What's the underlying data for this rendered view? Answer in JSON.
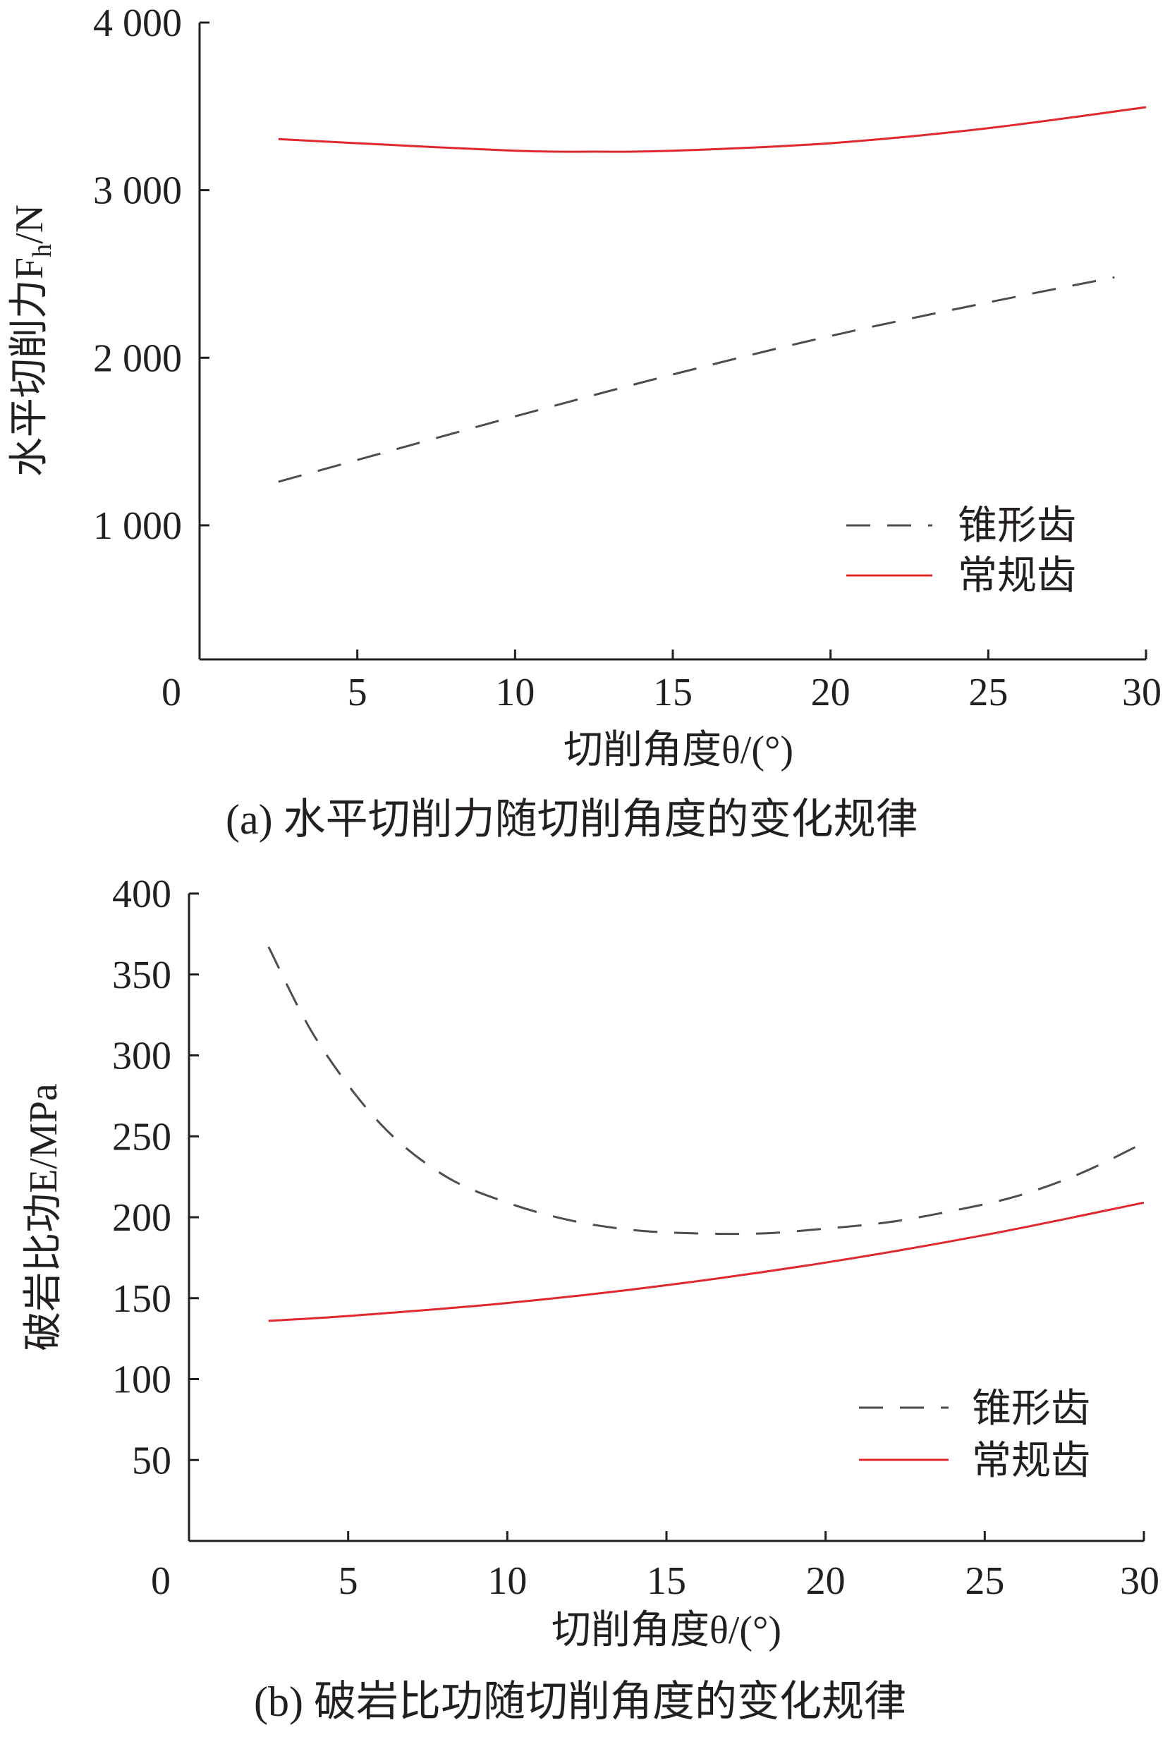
{
  "chart_data": [
    {
      "type": "line",
      "caption": "(a)  水平切削力随切削角度的变化规律",
      "xlabel": "切削角度θ/(°)",
      "ylabel": "水平切削力F",
      "ylabel_sub": "h",
      "ylabel_unit": "/N",
      "xlim": [
        0,
        30
      ],
      "ylim": [
        200,
        4000
      ],
      "xticks": [
        0,
        5,
        10,
        15,
        20,
        25,
        30
      ],
      "xtick_labels": [
        "0",
        "5",
        "10",
        "15",
        "20",
        "25",
        "30"
      ],
      "yticks": [
        1000,
        2000,
        3000,
        4000
      ],
      "ytick_labels": [
        "1 000",
        "2 000",
        "3 000",
        "4 000"
      ],
      "legend_position": "bottom-right",
      "series": [
        {
          "name": "锥形齿",
          "style": "dashed",
          "color": "#4d4d4d",
          "x": [
            2.5,
            5,
            10,
            15,
            20,
            25,
            29
          ],
          "y": [
            1260,
            1390,
            1650,
            1900,
            2130,
            2330,
            2480
          ]
        },
        {
          "name": "常规齿",
          "style": "solid",
          "color": "#e0282e",
          "x": [
            2.5,
            5,
            10,
            12.5,
            15,
            20,
            25,
            30
          ],
          "y": [
            3305,
            3280,
            3235,
            3230,
            3235,
            3280,
            3370,
            3495
          ]
        }
      ]
    },
    {
      "type": "line",
      "caption": "(b)  破岩比功随切削角度的变化规律",
      "xlabel": "切削角度θ/(°)",
      "ylabel": "破岩比功E/MPa",
      "xlim": [
        0,
        30
      ],
      "ylim": [
        0,
        400
      ],
      "xticks": [
        0,
        5,
        10,
        15,
        20,
        25,
        30
      ],
      "xtick_labels": [
        "0",
        "5",
        "10",
        "15",
        "20",
        "25",
        "30"
      ],
      "yticks": [
        50,
        100,
        150,
        200,
        250,
        300,
        350,
        400
      ],
      "ytick_labels": [
        "50",
        "100",
        "150",
        "200",
        "250",
        "300",
        "350",
        "400"
      ],
      "legend_position": "bottom-right",
      "series": [
        {
          "name": "锥形齿",
          "style": "dashed",
          "color": "#4d4d4d",
          "x": [
            2.5,
            4,
            6,
            8,
            10,
            12,
            14,
            16,
            18,
            20,
            22,
            24,
            26,
            28,
            30
          ],
          "y": [
            367,
            310,
            258,
            226,
            209,
            198,
            192,
            190,
            190,
            193,
            197,
            204,
            213,
            227,
            246
          ]
        },
        {
          "name": "常规齿",
          "style": "solid",
          "color": "#e0282e",
          "x": [
            2.5,
            5,
            10,
            15,
            20,
            25,
            30
          ],
          "y": [
            136,
            139,
            147,
            158,
            172,
            189,
            209
          ]
        }
      ]
    }
  ]
}
